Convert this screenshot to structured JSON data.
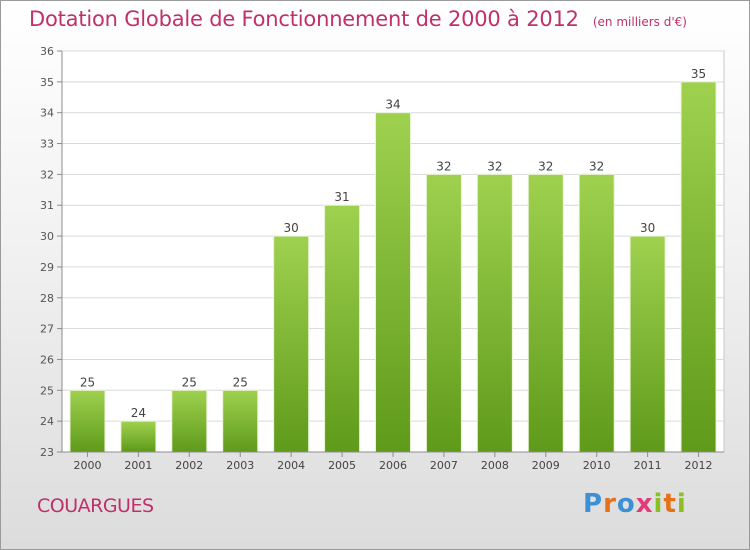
{
  "header": {
    "title": "Dotation Globale de Fonctionnement de 2000 à 2012",
    "unit_note": "(en milliers d'€)"
  },
  "footer": {
    "commune": "COUARGUES",
    "logo_text": "Proxiti"
  },
  "colors": {
    "accent": "#c0306a",
    "bar_top": "#9fd14f",
    "bar_bottom": "#5f9a1a"
  },
  "chart_data": {
    "type": "bar",
    "title": "Dotation Globale de Fonctionnement de 2000 à 2012",
    "subtitle": "(en milliers d'€)",
    "categories": [
      "2000",
      "2001",
      "2002",
      "2003",
      "2004",
      "2005",
      "2006",
      "2007",
      "2008",
      "2009",
      "2010",
      "2011",
      "2012"
    ],
    "values": [
      25,
      24,
      25,
      25,
      30,
      31,
      34,
      32,
      32,
      32,
      32,
      30,
      35
    ],
    "ylim": [
      23,
      36
    ],
    "yticks": [
      23,
      24,
      25,
      26,
      27,
      28,
      29,
      30,
      31,
      32,
      33,
      34,
      35,
      36
    ],
    "xlabel": "",
    "ylabel": "",
    "grid": true
  }
}
